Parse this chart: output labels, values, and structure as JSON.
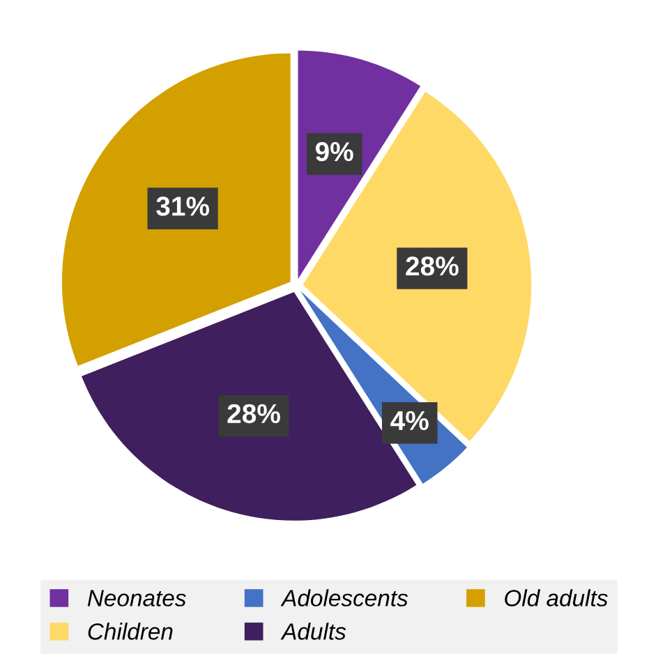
{
  "chart_data": {
    "type": "pie",
    "categories": [
      "Neonates",
      "Children",
      "Adolescents",
      "Adults",
      "Old adults"
    ],
    "values": [
      9,
      28,
      4,
      28,
      31
    ],
    "colors": [
      "#7030a0",
      "#ffd966",
      "#4472c4",
      "#3f1f5e",
      "#d4a000"
    ],
    "value_labels": [
      "9%",
      "28%",
      "4%",
      "28%",
      "31%"
    ],
    "legend": "bottom"
  }
}
